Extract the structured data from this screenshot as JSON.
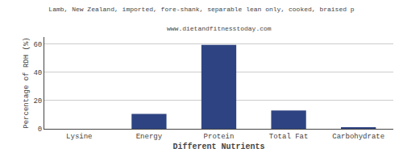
{
  "chart_data": {
    "type": "bar",
    "title": "Lamb, New Zealand, imported, fore-shank, separable lean only, cooked, braised p",
    "subtitle": "www.dietandfitnesstoday.com",
    "categories": [
      "Lysine",
      "Energy",
      "Protein",
      "Total Fat",
      "Carbohydrate"
    ],
    "values": [
      0,
      10.5,
      59.5,
      13.0,
      1.0
    ],
    "color": "#2e4482",
    "xlabel": "Different Nutrients",
    "ylabel": "Percentage of RDH (%)",
    "ylim": [
      0,
      65
    ],
    "yticks": [
      0,
      20,
      40,
      60
    ],
    "grid": true
  }
}
